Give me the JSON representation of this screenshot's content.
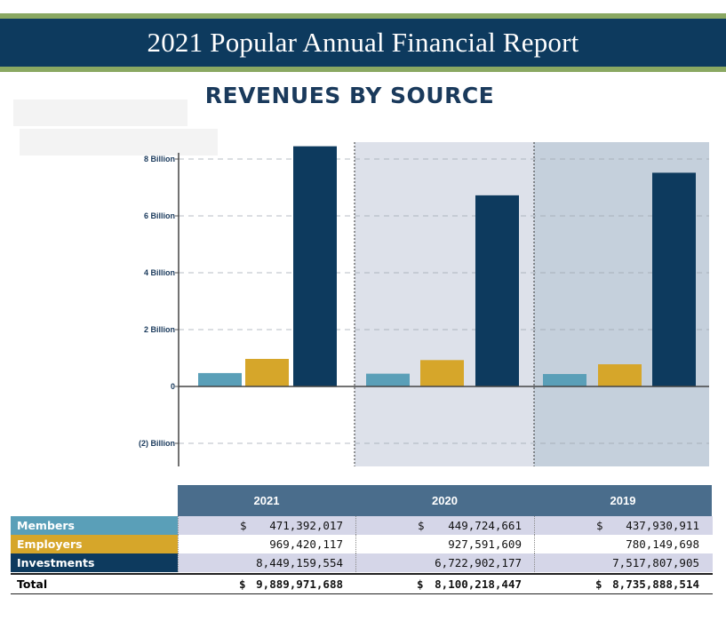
{
  "report_title": "2021 Popular Annual Financial Report",
  "section_title": "REVENUES BY SOURCE",
  "colors": {
    "banner": "#0d3a5e",
    "accent_band": "#8aa862",
    "members": "#5a9fb8",
    "employers": "#d6a62a",
    "investments": "#0d3a5e"
  },
  "chart_data": {
    "type": "bar",
    "title": "REVENUES BY SOURCE",
    "categories": [
      "2021",
      "2020",
      "2019"
    ],
    "series": [
      {
        "name": "Members",
        "color": "#5a9fb8",
        "values": [
          471392017,
          449724661,
          437930911
        ]
      },
      {
        "name": "Employers",
        "color": "#d6a62a",
        "values": [
          969420117,
          927591609,
          780149698
        ]
      },
      {
        "name": "Investments",
        "color": "#0d3a5e",
        "values": [
          8449159554,
          6722902177,
          7517807905
        ]
      }
    ],
    "ylim": [
      -2800000000,
      8800000000
    ],
    "yticks": [
      {
        "value": 8000000000,
        "label": "8 Billion"
      },
      {
        "value": 6000000000,
        "label": "6 Billion"
      },
      {
        "value": 4000000000,
        "label": "4 Billion"
      },
      {
        "value": 2000000000,
        "label": "2 Billion"
      },
      {
        "value": 0,
        "label": "0"
      },
      {
        "value": -2000000000,
        "label": "(2) Billion"
      }
    ],
    "grid": true
  },
  "table": {
    "headers": [
      "2021",
      "2020",
      "2019"
    ],
    "rows": [
      {
        "label": "Members",
        "dollar": "$",
        "values": [
          "471,392,017",
          "449,724,661",
          "437,930,911"
        ]
      },
      {
        "label": "Employers",
        "dollar": "",
        "values": [
          "969,420,117",
          "927,591,609",
          "780,149,698"
        ]
      },
      {
        "label": "Investments",
        "dollar": "",
        "values": [
          "8,449,159,554",
          "6,722,902,177",
          "7,517,807,905"
        ]
      }
    ],
    "total": {
      "label": "Total",
      "dollar": "$",
      "values": [
        "9,889,971,688",
        "8,100,218,447",
        "8,735,888,514"
      ]
    }
  }
}
